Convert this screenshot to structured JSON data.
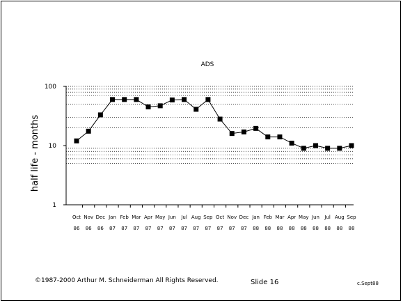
{
  "chart_data": {
    "type": "line",
    "title": "ADS",
    "ylabel": "half life - months",
    "xlabel": "",
    "y_scale": "log",
    "ylim": [
      1,
      100
    ],
    "y_ticks": [
      "1",
      "10",
      "100"
    ],
    "grid": "dotted horizontal lines at 5, 6, 7, 8, 9, 20, 30, 50, 70, 80, 90, 100",
    "legend": "none",
    "categories": [
      "Oct 86",
      "Nov 86",
      "Dec 86",
      "Jan 87",
      "Feb 87",
      "Mar 87",
      "Apr 87",
      "May 87",
      "Jun 87",
      "Jul 87",
      "Aug 87",
      "Sep 87",
      "Oct 87",
      "Nov 87",
      "Dec 87",
      "Jan 88",
      "Feb 88",
      "Mar 88",
      "Apr 88",
      "May 88",
      "Jun 88",
      "Jul 88",
      "Aug 88",
      "Sep 88"
    ],
    "month_labels": [
      "Oct",
      "Nov",
      "Dec",
      "Jan",
      "Feb",
      "Mar",
      "Apr",
      "May",
      "Jun",
      "Jul",
      "Aug",
      "Sep",
      "Oct",
      "Nov",
      "Dec",
      "Jan",
      "Feb",
      "Mar",
      "Apr",
      "May",
      "Jun",
      "Jul",
      "Aug",
      "Sep"
    ],
    "year_labels": [
      "86",
      "86",
      "86",
      "87",
      "87",
      "87",
      "87",
      "87",
      "87",
      "87",
      "87",
      "87",
      "87",
      "87",
      "87",
      "88",
      "88",
      "88",
      "88",
      "88",
      "88",
      "88",
      "88",
      "88"
    ],
    "series": [
      {
        "values": [
          12,
          17.5,
          33,
          60,
          60,
          60,
          45,
          47,
          59,
          60,
          41,
          60,
          28,
          16,
          17,
          19.5,
          14,
          14,
          11,
          9,
          10,
          9,
          9,
          10
        ],
        "color": "#000000",
        "marker": "square"
      }
    ]
  },
  "footer": {
    "copyright": "©1987-2000 Arthur M. Schneiderman All Rights Reserved.",
    "slide": "Slide 16",
    "date": "c.Sept88"
  }
}
